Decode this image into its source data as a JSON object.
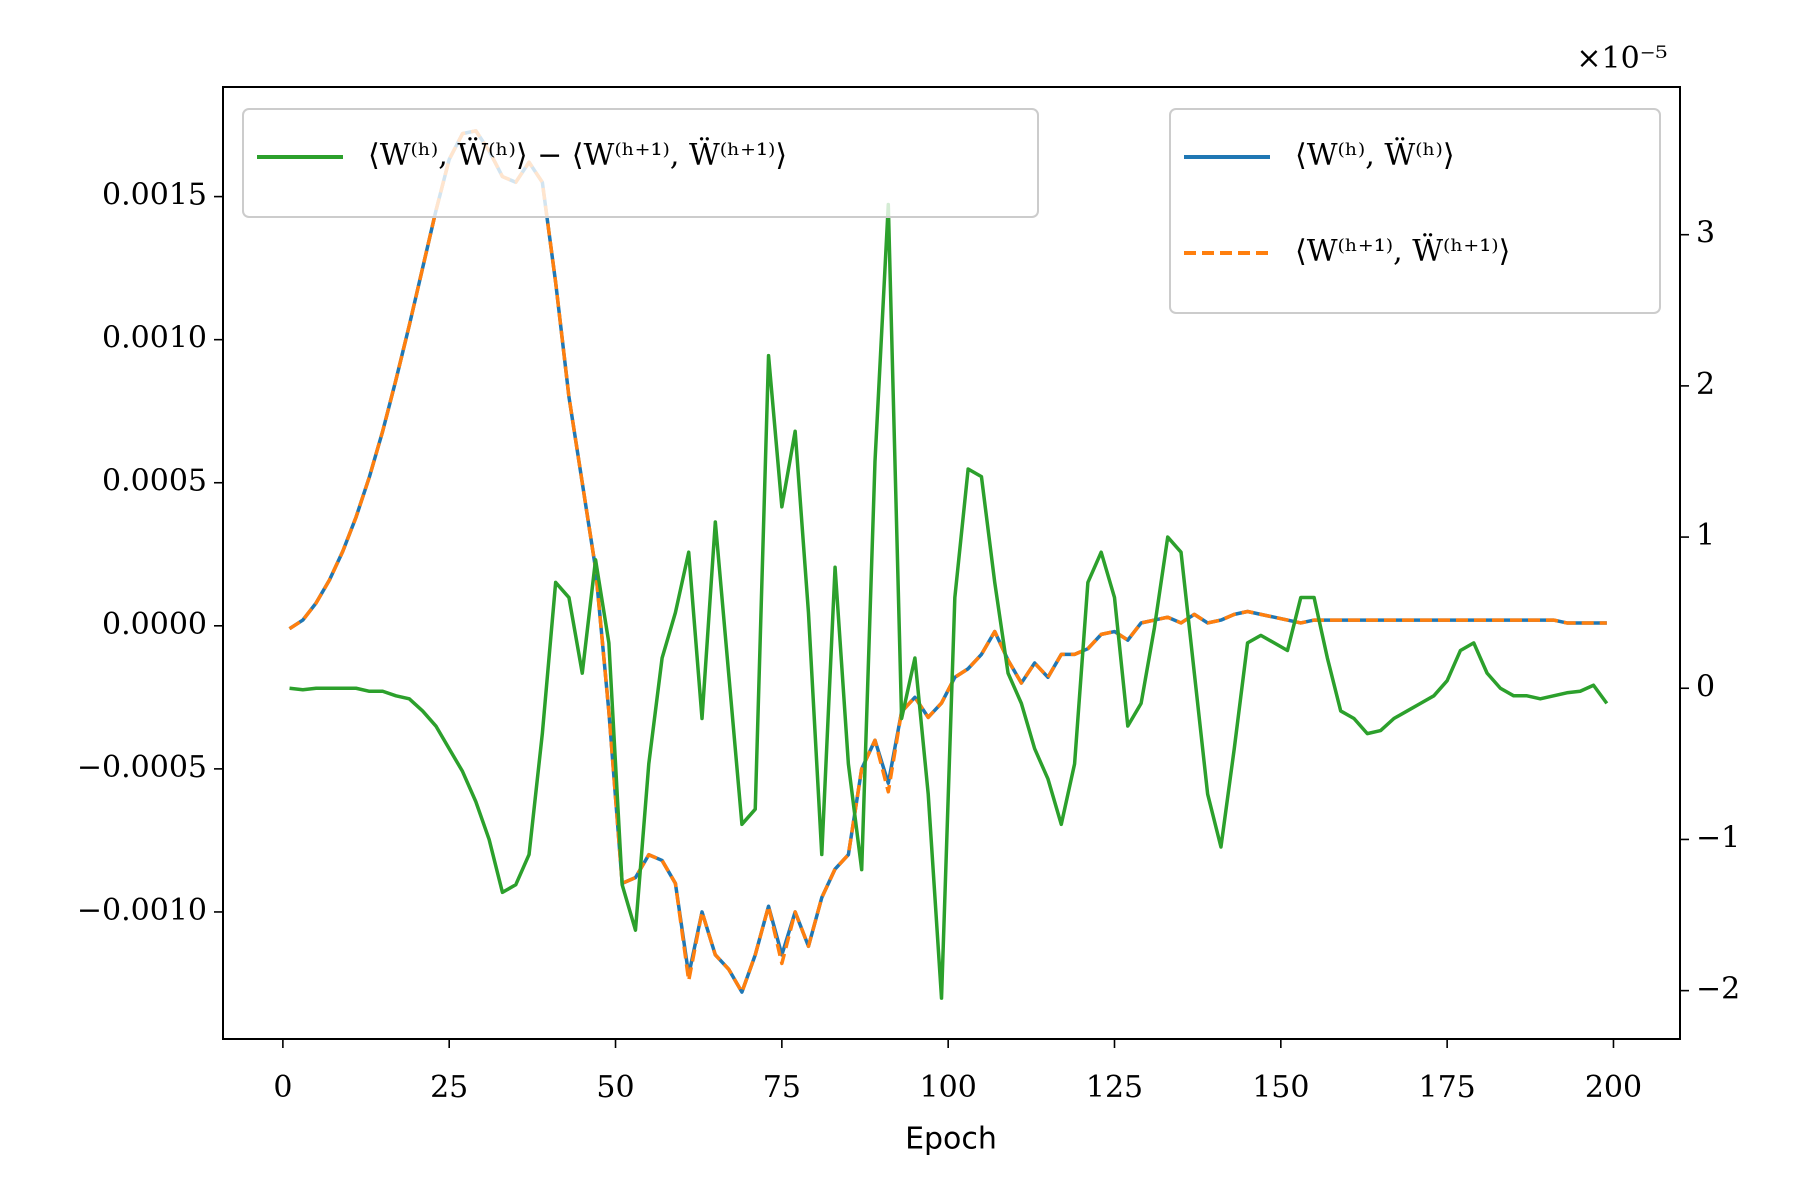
{
  "chart_data": {
    "type": "line",
    "x_label": "Epoch",
    "y2_offset_label": "×10⁻⁵",
    "xlim": [
      -9,
      210
    ],
    "ylim": [
      -0.001444,
      0.001883
    ],
    "y2lim": [
      -2.32,
      3.977
    ],
    "xticks": [
      0,
      25,
      50,
      75,
      100,
      125,
      150,
      175,
      200
    ],
    "yticks": [
      {
        "value": -0.001,
        "label": "−0.0010"
      },
      {
        "value": -0.0005,
        "label": "−0.0005"
      },
      {
        "value": 0,
        "label": "0.0000"
      },
      {
        "value": 0.0005,
        "label": "0.0005"
      },
      {
        "value": 0.001,
        "label": "0.0010"
      },
      0.0015
    ],
    "y2ticks": [
      {
        "value": -2,
        "label": "−2"
      },
      {
        "value": -1,
        "label": "−1"
      },
      0,
      1,
      2,
      3
    ],
    "y2color": "#2ca02c",
    "legend": "upper right",
    "y2legend": "upper left",
    "x": [
      1,
      3,
      5,
      7,
      9,
      11,
      13,
      15,
      17,
      19,
      21,
      23,
      25,
      27,
      29,
      31,
      33,
      35,
      37,
      39,
      41,
      43,
      45,
      47,
      49,
      51,
      53,
      55,
      57,
      59,
      61,
      63,
      65,
      67,
      69,
      71,
      73,
      75,
      77,
      79,
      81,
      83,
      85,
      87,
      89,
      91,
      93,
      95,
      97,
      99,
      101,
      103,
      105,
      107,
      109,
      111,
      113,
      115,
      117,
      119,
      121,
      123,
      125,
      127,
      129,
      131,
      133,
      135,
      137,
      139,
      141,
      143,
      145,
      147,
      149,
      151,
      153,
      155,
      157,
      159,
      161,
      163,
      165,
      167,
      169,
      171,
      173,
      175,
      177,
      179,
      181,
      183,
      185,
      187,
      189,
      191,
      193,
      195,
      197,
      199
    ],
    "series": [
      {
        "name": "⟨W⁽ʰ⁾, Ẅ⁽ʰ⁾⟩",
        "color": "#1f77b4",
        "dash": false,
        "values": [
          -1e-05,
          2e-05,
          8e-05,
          0.00016,
          0.00026,
          0.00038,
          0.00052,
          0.00068,
          0.00086,
          0.00105,
          0.00125,
          0.00145,
          0.00163,
          0.00172,
          0.00173,
          0.00166,
          0.00157,
          0.00155,
          0.00162,
          0.00155,
          0.0012,
          0.0008,
          0.0005,
          0.0002,
          -0.0003,
          -0.0009,
          -0.00088,
          -0.0008,
          -0.00082,
          -0.0009,
          -0.00122,
          -0.001,
          -0.00115,
          -0.0012,
          -0.00128,
          -0.00115,
          -0.00098,
          -0.00115,
          -0.001,
          -0.00112,
          -0.00095,
          -0.00085,
          -0.0008,
          -0.0005,
          -0.0004,
          -0.00055,
          -0.0003,
          -0.00025,
          -0.00032,
          -0.00027,
          -0.00018,
          -0.00015,
          -0.0001,
          -2e-05,
          -0.00012,
          -0.0002,
          -0.00013,
          -0.00018,
          -0.0001,
          -0.0001,
          -8e-05,
          -3e-05,
          -2e-05,
          -5e-05,
          1e-05,
          2e-05,
          3e-05,
          1e-05,
          4e-05,
          1e-05,
          2e-05,
          4e-05,
          5e-05,
          4e-05,
          3e-05,
          2e-05,
          1e-05,
          2e-05,
          2e-05,
          2e-05,
          2e-05,
          2e-05,
          2e-05,
          2e-05,
          2e-05,
          2e-05,
          2e-05,
          2e-05,
          2e-05,
          2e-05,
          2e-05,
          2e-05,
          2e-05,
          2e-05,
          2e-05,
          2e-05,
          1e-05,
          1e-05,
          1e-05,
          1e-05
        ]
      },
      {
        "name": "⟨W⁽ʰ⁺¹⁾, Ẅ⁽ʰ⁺¹⁾⟩",
        "color": "#ff7f0e",
        "dash": true,
        "values": [
          -1e-05,
          2e-05,
          8e-05,
          0.00016,
          0.00026,
          0.00038,
          0.00052,
          0.00068,
          0.00086,
          0.00105,
          0.00125,
          0.00145,
          0.00163,
          0.00172,
          0.00173,
          0.00166,
          0.00157,
          0.00155,
          0.00162,
          0.00155,
          0.0012,
          0.0008,
          0.0005,
          0.0002,
          -0.0003,
          -0.0009,
          -0.00088,
          -0.0008,
          -0.00082,
          -0.0009,
          -0.00124,
          -0.001,
          -0.00115,
          -0.0012,
          -0.00128,
          -0.00115,
          -0.00098,
          -0.00118,
          -0.001,
          -0.00112,
          -0.00095,
          -0.00085,
          -0.0008,
          -0.0005,
          -0.0004,
          -0.00058,
          -0.0003,
          -0.00025,
          -0.00032,
          -0.00027,
          -0.00018,
          -0.00015,
          -0.0001,
          -2e-05,
          -0.00012,
          -0.0002,
          -0.00013,
          -0.00018,
          -0.0001,
          -0.0001,
          -8e-05,
          -3e-05,
          -2e-05,
          -5e-05,
          1e-05,
          2e-05,
          3e-05,
          1e-05,
          4e-05,
          1e-05,
          2e-05,
          4e-05,
          5e-05,
          4e-05,
          3e-05,
          2e-05,
          1e-05,
          2e-05,
          2e-05,
          2e-05,
          2e-05,
          2e-05,
          2e-05,
          2e-05,
          2e-05,
          2e-05,
          2e-05,
          2e-05,
          2e-05,
          2e-05,
          2e-05,
          2e-05,
          2e-05,
          2e-05,
          2e-05,
          2e-05,
          1e-05,
          1e-05,
          1e-05,
          1e-05
        ]
      },
      {
        "name": "⟨W⁽ʰ⁾, Ẅ⁽ʰ⁾⟩ − ⟨W⁽ʰ⁺¹⁾, Ẅ⁽ʰ⁺¹⁾⟩",
        "color": "#2ca02c",
        "dash": false,
        "axis": "y2",
        "values": [
          0.0,
          -0.01,
          0.0,
          0.0,
          0.0,
          0.0,
          -0.02,
          -0.02,
          -0.05,
          -0.07,
          -0.15,
          -0.25,
          -0.4,
          -0.55,
          -0.75,
          -1.0,
          -1.35,
          -1.3,
          -1.1,
          -0.3,
          0.7,
          0.6,
          0.1,
          0.85,
          0.3,
          -1.3,
          -1.6,
          -0.5,
          0.2,
          0.5,
          0.9,
          -0.2,
          1.1,
          0.1,
          -0.9,
          -0.8,
          2.2,
          1.2,
          1.7,
          0.5,
          -1.1,
          0.8,
          -0.5,
          -1.2,
          1.5,
          3.2,
          -0.2,
          0.2,
          -0.7,
          -2.05,
          0.6,
          1.45,
          1.4,
          0.7,
          0.1,
          -0.1,
          -0.4,
          -0.6,
          -0.9,
          -0.5,
          0.7,
          0.9,
          0.6,
          -0.25,
          -0.1,
          0.4,
          1.0,
          0.9,
          0.1,
          -0.7,
          -1.05,
          -0.4,
          0.3,
          0.35,
          0.3,
          0.25,
          0.6,
          0.6,
          0.2,
          -0.15,
          -0.2,
          -0.3,
          -0.28,
          -0.2,
          -0.15,
          -0.1,
          -0.05,
          0.05,
          0.25,
          0.3,
          0.1,
          0.0,
          -0.05,
          -0.05,
          -0.07,
          -0.05,
          -0.03,
          -0.02,
          0.02,
          -0.1
        ]
      }
    ]
  }
}
